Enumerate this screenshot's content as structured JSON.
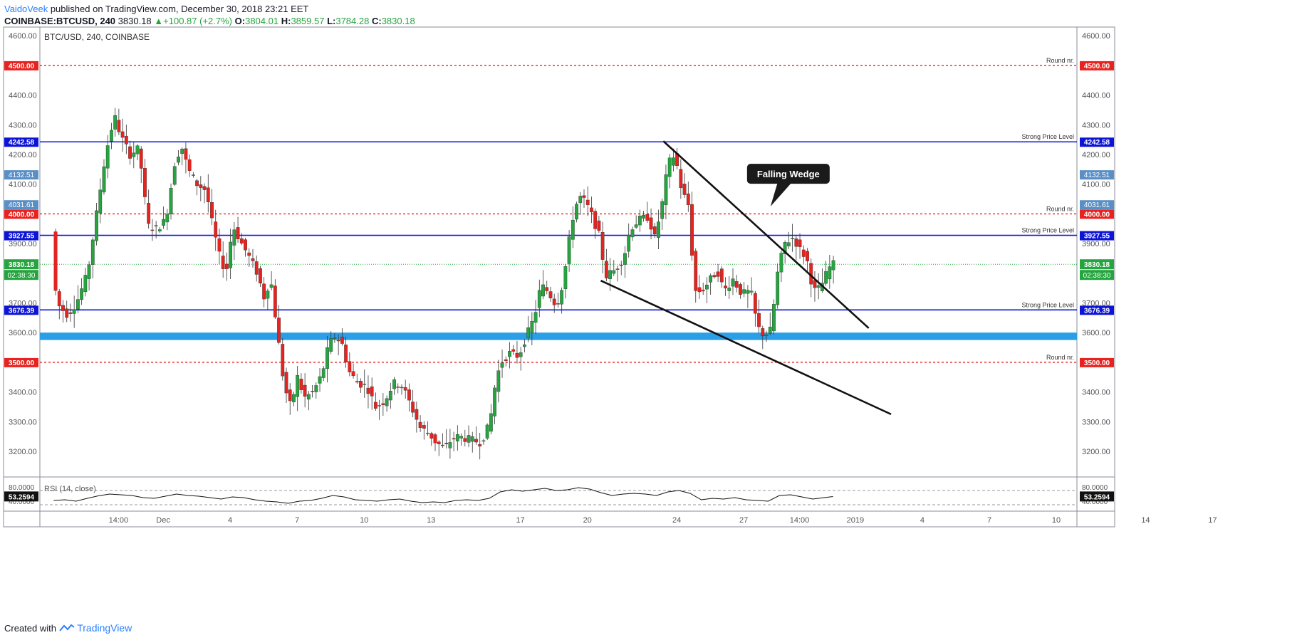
{
  "header": {
    "author": "VaidoVeek",
    "published": "published on TradingView.com, December 30, 2018 23:21 EET",
    "symbol": "COINBASE:BTCUSD, 240",
    "last": "3830.18",
    "change": "+100.87 (+2.7%)",
    "open_label": "O:",
    "open": "3804.01",
    "high_label": "H:",
    "high": "3859.57",
    "low_label": "L:",
    "low": "3784.28",
    "close_label": "C:",
    "close": "3830.18"
  },
  "footer": {
    "created_with": "Created with",
    "brand": "TradingView"
  },
  "colors": {
    "up": "#26a43f",
    "down": "#e8231f",
    "blue_level": "#0c14d6",
    "red_level": "#e8231f",
    "zone": "#2a9fe8",
    "trendline": "#111111",
    "badge_blue": "#5a8fc5"
  },
  "chart_data": {
    "type": "candlestick",
    "title": "BTC/USD, 240, COINBASE",
    "ylim": [
      3100,
      4650
    ],
    "y_ticks": [
      "4600.00",
      "4500.00",
      "4400.00",
      "4300.00",
      "4200.00",
      "4100.00",
      "4000.00",
      "3900.00",
      "3800.00",
      "3700.00",
      "3600.00",
      "3500.00",
      "3400.00",
      "3300.00",
      "3200.00"
    ],
    "x_ticks": [
      {
        "label": "14:00",
        "x": 1.0
      },
      {
        "label": "Dec",
        "x": 3.0
      },
      {
        "label": "4",
        "x": 6.0
      },
      {
        "label": "7",
        "x": 9.0
      },
      {
        "label": "10",
        "x": 12.0
      },
      {
        "label": "13",
        "x": 15.0
      },
      {
        "label": "17",
        "x": 19.0
      },
      {
        "label": "20",
        "x": 22.0
      },
      {
        "label": "24",
        "x": 26.0
      },
      {
        "label": "27",
        "x": 29.0
      },
      {
        "label": "14:00",
        "x": 31.5
      },
      {
        "label": "2019",
        "x": 34.0
      },
      {
        "label": "4",
        "x": 37.0
      },
      {
        "label": "7",
        "x": 40.0
      },
      {
        "label": "10",
        "x": 43.0
      },
      {
        "label": "14",
        "x": 47.0
      },
      {
        "label": "17",
        "x": 50.0
      }
    ],
    "price_path": [
      [
        -1.9,
        3940
      ],
      [
        -1.7,
        3700
      ],
      [
        -1.2,
        3660
      ],
      [
        -0.8,
        3700
      ],
      [
        -0.3,
        3800
      ],
      [
        0.2,
        4050
      ],
      [
        0.5,
        4200
      ],
      [
        0.9,
        4330
      ],
      [
        1.2,
        4260
      ],
      [
        1.6,
        4200
      ],
      [
        2.0,
        4220
      ],
      [
        2.4,
        3960
      ],
      [
        2.8,
        3950
      ],
      [
        3.2,
        3980
      ],
      [
        3.6,
        4170
      ],
      [
        3.9,
        4230
      ],
      [
        4.2,
        4150
      ],
      [
        4.6,
        4100
      ],
      [
        5.0,
        4080
      ],
      [
        5.3,
        3960
      ],
      [
        5.6,
        3860
      ],
      [
        5.9,
        3800
      ],
      [
        6.2,
        3960
      ],
      [
        6.6,
        3900
      ],
      [
        6.9,
        3860
      ],
      [
        7.3,
        3800
      ],
      [
        7.6,
        3720
      ],
      [
        7.9,
        3780
      ],
      [
        8.2,
        3600
      ],
      [
        8.5,
        3420
      ],
      [
        8.8,
        3350
      ],
      [
        9.1,
        3450
      ],
      [
        9.4,
        3380
      ],
      [
        9.8,
        3400
      ],
      [
        10.2,
        3460
      ],
      [
        10.5,
        3560
      ],
      [
        10.8,
        3590
      ],
      [
        11.1,
        3560
      ],
      [
        11.4,
        3470
      ],
      [
        11.8,
        3430
      ],
      [
        12.2,
        3420
      ],
      [
        12.6,
        3350
      ],
      [
        13.0,
        3370
      ],
      [
        13.4,
        3430
      ],
      [
        13.8,
        3420
      ],
      [
        14.2,
        3350
      ],
      [
        14.6,
        3280
      ],
      [
        15.0,
        3260
      ],
      [
        15.3,
        3230
      ],
      [
        15.7,
        3210
      ],
      [
        16.0,
        3240
      ],
      [
        16.3,
        3250
      ],
      [
        16.8,
        3240
      ],
      [
        17.3,
        3230
      ],
      [
        17.7,
        3290
      ],
      [
        18.0,
        3450
      ],
      [
        18.3,
        3510
      ],
      [
        18.6,
        3530
      ],
      [
        19.0,
        3520
      ],
      [
        19.3,
        3580
      ],
      [
        19.7,
        3650
      ],
      [
        20.0,
        3760
      ],
      [
        20.3,
        3740
      ],
      [
        20.7,
        3690
      ],
      [
        21.0,
        3770
      ],
      [
        21.4,
        3980
      ],
      [
        21.7,
        4060
      ],
      [
        22.0,
        4040
      ],
      [
        22.3,
        3990
      ],
      [
        22.6,
        3930
      ],
      [
        22.9,
        3790
      ],
      [
        23.3,
        3810
      ],
      [
        23.7,
        3850
      ],
      [
        24.0,
        3950
      ],
      [
        24.4,
        3980
      ],
      [
        24.8,
        3990
      ],
      [
        25.1,
        3920
      ],
      [
        25.4,
        4020
      ],
      [
        25.7,
        4170
      ],
      [
        26.0,
        4200
      ],
      [
        26.3,
        4080
      ],
      [
        26.6,
        4030
      ],
      [
        26.9,
        3740
      ],
      [
        27.2,
        3740
      ],
      [
        27.6,
        3780
      ],
      [
        27.9,
        3810
      ],
      [
        28.2,
        3740
      ],
      [
        28.6,
        3780
      ],
      [
        29.0,
        3730
      ],
      [
        29.4,
        3740
      ],
      [
        29.7,
        3620
      ],
      [
        30.0,
        3590
      ],
      [
        30.3,
        3610
      ],
      [
        30.6,
        3800
      ],
      [
        30.9,
        3900
      ],
      [
        31.3,
        3920
      ],
      [
        31.6,
        3880
      ],
      [
        31.9,
        3850
      ],
      [
        32.2,
        3740
      ],
      [
        32.5,
        3750
      ],
      [
        32.8,
        3800
      ],
      [
        33.0,
        3830
      ]
    ],
    "levels": [
      {
        "price": 4500.0,
        "label": "4500.00",
        "style": "red-dashed",
        "note": "Round nr."
      },
      {
        "price": 4242.58,
        "label": "4242.58",
        "style": "blue-solid",
        "note": "Strong Price Level"
      },
      {
        "price": 4000.0,
        "label": "4000.00",
        "style": "red-dashed",
        "note": "Round nr."
      },
      {
        "price": 3927.55,
        "label": "3927.55",
        "style": "blue-solid",
        "note": "Strong Price Level"
      },
      {
        "price": 3676.39,
        "label": "3676.39",
        "style": "blue-solid",
        "note": "Strong Price Level"
      },
      {
        "price": 3500.0,
        "label": "3500.00",
        "style": "red-dashed",
        "note": "Round nr."
      }
    ],
    "last_price": {
      "price": 3830.18,
      "label": "3830.18",
      "countdown": "02:38:30"
    },
    "left_badges": [
      {
        "price": 4132.51,
        "label": "4132.51"
      },
      {
        "price": 4031.61,
        "label": "4031.61"
      }
    ],
    "right_badges": [
      {
        "price": 4132.51,
        "label": "4132.51"
      },
      {
        "price": 4031.61,
        "label": "4031.61"
      }
    ],
    "zone": {
      "from": 3575,
      "to": 3600
    },
    "trendlines": [
      {
        "from": [
          25.4,
          4245
        ],
        "to": [
          34.6,
          3615
        ]
      },
      {
        "from": [
          22.6,
          3775
        ],
        "to": [
          35.6,
          3325
        ]
      }
    ],
    "annotation": {
      "text": "Falling Wedge",
      "at": [
        31.0,
        4135
      ],
      "pointer": [
        30.2,
        4025
      ]
    },
    "rsi": {
      "title": "RSI (14, close)",
      "value": "53.2594",
      "ylim": [
        20,
        90
      ],
      "y_ticks": [
        "80.0000",
        "40.0000"
      ],
      "bands": [
        70,
        30
      ],
      "values": [
        [
          -1.9,
          42
        ],
        [
          -1.4,
          44
        ],
        [
          -0.9,
          40
        ],
        [
          -0.4,
          48
        ],
        [
          0.1,
          55
        ],
        [
          0.6,
          60
        ],
        [
          1.1,
          58
        ],
        [
          1.6,
          56
        ],
        [
          2.1,
          50
        ],
        [
          2.6,
          48
        ],
        [
          3.1,
          54
        ],
        [
          3.6,
          60
        ],
        [
          4.1,
          56
        ],
        [
          4.6,
          54
        ],
        [
          5.1,
          50
        ],
        [
          5.6,
          46
        ],
        [
          6.1,
          52
        ],
        [
          6.6,
          50
        ],
        [
          7.1,
          44
        ],
        [
          7.6,
          40
        ],
        [
          8.1,
          38
        ],
        [
          8.6,
          34
        ],
        [
          9.1,
          40
        ],
        [
          9.6,
          42
        ],
        [
          10.1,
          48
        ],
        [
          10.6,
          56
        ],
        [
          11.1,
          52
        ],
        [
          11.6,
          44
        ],
        [
          12.1,
          42
        ],
        [
          12.6,
          40
        ],
        [
          13.1,
          44
        ],
        [
          13.6,
          46
        ],
        [
          14.1,
          40
        ],
        [
          14.6,
          36
        ],
        [
          15.1,
          38
        ],
        [
          15.6,
          36
        ],
        [
          16.1,
          42
        ],
        [
          16.6,
          44
        ],
        [
          17.1,
          42
        ],
        [
          17.6,
          48
        ],
        [
          18.1,
          66
        ],
        [
          18.6,
          72
        ],
        [
          19.1,
          68
        ],
        [
          19.6,
          72
        ],
        [
          20.1,
          76
        ],
        [
          20.6,
          70
        ],
        [
          21.1,
          72
        ],
        [
          21.6,
          78
        ],
        [
          22.1,
          74
        ],
        [
          22.6,
          64
        ],
        [
          23.1,
          56
        ],
        [
          23.6,
          60
        ],
        [
          24.1,
          62
        ],
        [
          24.6,
          60
        ],
        [
          25.1,
          56
        ],
        [
          25.6,
          66
        ],
        [
          26.1,
          70
        ],
        [
          26.6,
          62
        ],
        [
          27.1,
          44
        ],
        [
          27.6,
          48
        ],
        [
          28.1,
          46
        ],
        [
          28.6,
          50
        ],
        [
          29.1,
          44
        ],
        [
          29.6,
          42
        ],
        [
          30.1,
          40
        ],
        [
          30.6,
          56
        ],
        [
          31.1,
          58
        ],
        [
          31.6,
          52
        ],
        [
          32.1,
          46
        ],
        [
          32.6,
          50
        ],
        [
          33.0,
          53
        ]
      ]
    }
  }
}
